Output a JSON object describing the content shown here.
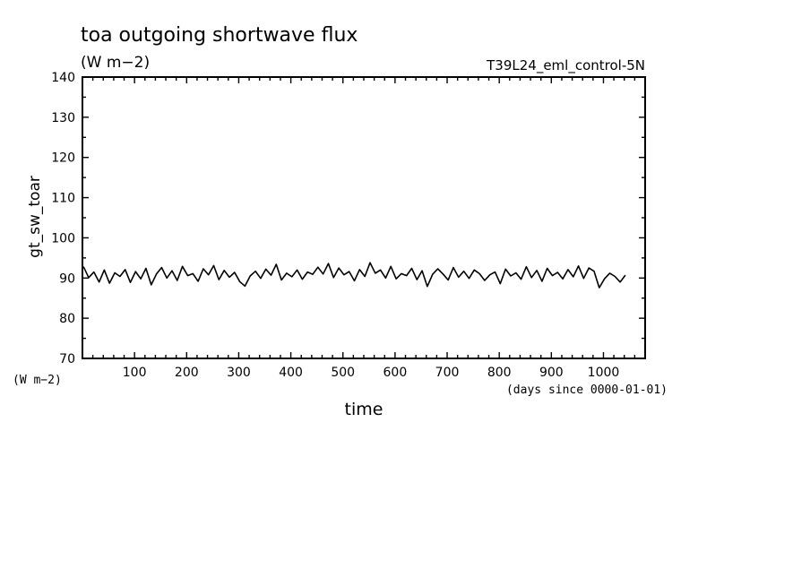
{
  "chart_data": {
    "type": "line",
    "title": "toa outgoing shortwave flux",
    "subtitle": "(W m−2)",
    "run_label": "T39L24_eml_control-5N",
    "ylabel": "gt_sw_toar",
    "yunits": "(W m−2)",
    "xlabel": "time",
    "xunits": "(days since 0000-01-01)",
    "xlim": [
      0,
      1080
    ],
    "ylim": [
      70,
      140
    ],
    "x_ticks": [
      100,
      200,
      300,
      400,
      500,
      600,
      700,
      800,
      900,
      1000
    ],
    "y_ticks": [
      70,
      80,
      90,
      100,
      110,
      120,
      130,
      140
    ],
    "grid": false,
    "series": [
      {
        "x_step_days": 10,
        "values": [
          92.8,
          90.1,
          91.5,
          89.0,
          92.0,
          88.7,
          91.3,
          90.4,
          92.1,
          88.9,
          91.6,
          89.8,
          92.4,
          88.3,
          91.0,
          92.6,
          90.0,
          91.8,
          89.4,
          92.9,
          90.6,
          91.1,
          89.2,
          92.3,
          90.8,
          93.1,
          89.6,
          91.9,
          90.2,
          91.4,
          89.1,
          88.0,
          90.5,
          91.7,
          89.9,
          92.2,
          90.7,
          93.4,
          89.5,
          91.2,
          90.3,
          92.0,
          89.7,
          91.5,
          90.9,
          92.7,
          91.0,
          93.6,
          90.1,
          92.5,
          90.8,
          91.6,
          89.3,
          92.1,
          90.4,
          93.8,
          91.2,
          92.0,
          90.0,
          92.9,
          89.8,
          91.1,
          90.6,
          92.4,
          89.6,
          91.8,
          87.9,
          90.9,
          92.3,
          91.0,
          89.5,
          92.6,
          90.2,
          91.7,
          89.9,
          92.0,
          91.1,
          89.4,
          90.8,
          91.5,
          88.6,
          92.2,
          90.5,
          91.3,
          89.7,
          92.8,
          90.1,
          91.9,
          89.2,
          92.4,
          90.6,
          91.4,
          89.8,
          92.1,
          90.3,
          93.0,
          89.9,
          92.5,
          91.7,
          87.6,
          89.8,
          91.2,
          90.4,
          89.0,
          90.7
        ]
      }
    ]
  }
}
